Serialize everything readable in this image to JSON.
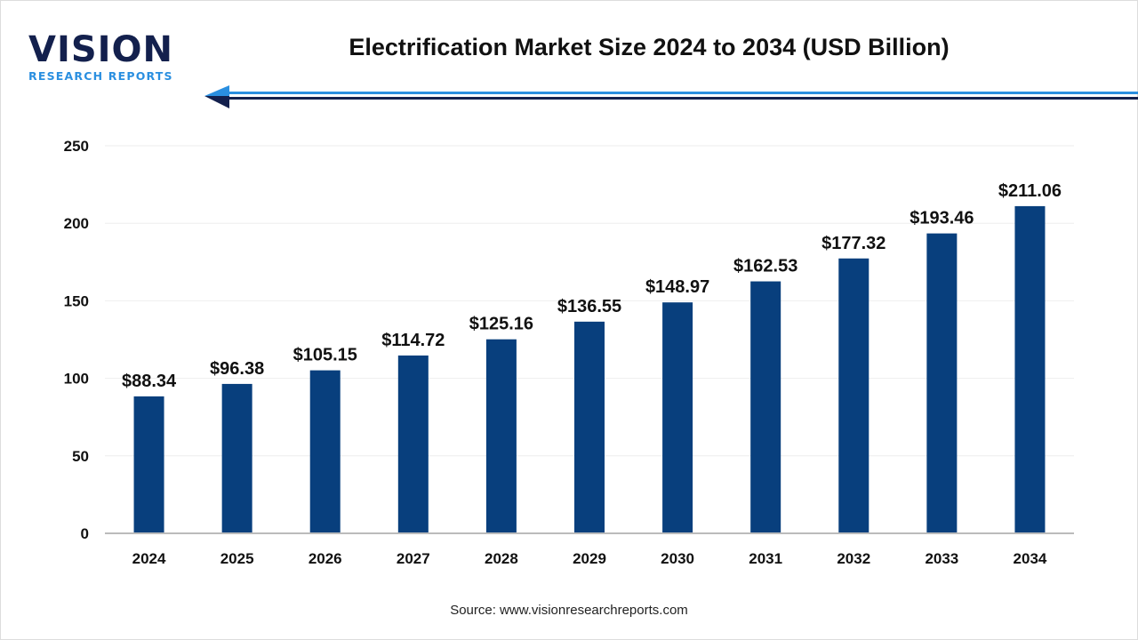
{
  "logo": {
    "main": "VISION",
    "sub": "RESEARCH REPORTS"
  },
  "source": "Source: www.visionresearchreports.com",
  "colors": {
    "bar": "#083f7d",
    "arrow_light": "#2a8fe0",
    "arrow_dark": "#13204d",
    "grid": "#eeeeee",
    "axis": "#bbbbbb"
  },
  "chart_data": {
    "type": "bar",
    "title": "Electrification Market Size 2024 to 2034 (USD Billion)",
    "xlabel": "",
    "ylabel": "",
    "categories": [
      "2024",
      "2025",
      "2026",
      "2027",
      "2028",
      "2029",
      "2030",
      "2031",
      "2032",
      "2033",
      "2034"
    ],
    "values": [
      88.34,
      96.38,
      105.15,
      114.72,
      125.16,
      136.55,
      148.97,
      162.53,
      177.32,
      193.46,
      211.06
    ],
    "data_labels": [
      "$88.34",
      "$96.38",
      "$105.15",
      "$114.72",
      "$125.16",
      "$136.55",
      "$148.97",
      "$162.53",
      "$177.32",
      "$193.46",
      "$211.06"
    ],
    "ylim": [
      0,
      250
    ],
    "yticks": [
      0,
      50,
      100,
      150,
      200,
      250
    ],
    "grid": true,
    "legend": "none"
  }
}
